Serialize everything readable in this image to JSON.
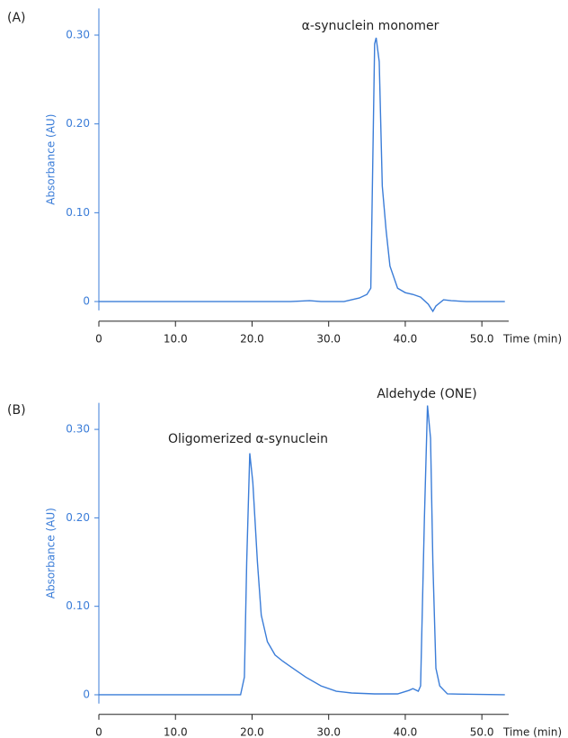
{
  "chart_data": [
    {
      "type": "line",
      "panel_label": "(A)",
      "y_label": "Absorbance (AU)",
      "x_label": "Time (min)",
      "annotations": [
        "α-synuclein monomer"
      ],
      "xlim": [
        0,
        53.5
      ],
      "ylim": [
        -0.01,
        0.33
      ],
      "xticks": [
        0,
        {
          "value": 10,
          "label": "10.0"
        },
        {
          "value": 20,
          "label": "20.0"
        },
        {
          "value": 30,
          "label": "30.0"
        },
        {
          "value": 40,
          "label": "40.0"
        },
        {
          "value": 50,
          "label": "50.0"
        }
      ],
      "yticks": [
        0,
        {
          "value": 0.1,
          "label": "0.10"
        },
        {
          "value": 0.2,
          "label": "0.20"
        },
        {
          "value": 0.3,
          "label": "0.30"
        }
      ],
      "color": "#3b7dd8",
      "x": [
        0,
        25,
        27.5,
        29,
        32,
        34,
        35,
        35.5,
        36,
        36.2,
        36.6,
        37,
        37.5,
        38,
        39,
        40,
        41,
        42,
        43,
        43.6,
        44,
        45,
        46,
        48,
        53
      ],
      "values": [
        0,
        0,
        0.001,
        0,
        0,
        0.004,
        0.008,
        0.015,
        0.29,
        0.297,
        0.27,
        0.13,
        0.08,
        0.04,
        0.015,
        0.01,
        0.008,
        0.005,
        -0.003,
        -0.011,
        -0.005,
        0.002,
        0.001,
        0,
        0
      ]
    },
    {
      "type": "line",
      "panel_label": "(B)",
      "y_label": "Absorbance (AU)",
      "x_label": "Time (min)",
      "annotations": [
        "Oligomerized α-synuclein",
        "Aldehyde (ONE)"
      ],
      "xlim": [
        0,
        53.5
      ],
      "ylim": [
        -0.01,
        0.33
      ],
      "xticks": [
        0,
        {
          "value": 10,
          "label": "10.0"
        },
        {
          "value": 20,
          "label": "20.0"
        },
        {
          "value": 30,
          "label": "30.0"
        },
        {
          "value": 40,
          "label": "40.0"
        },
        {
          "value": 50,
          "label": "50.0"
        }
      ],
      "yticks": [
        0,
        {
          "value": 0.1,
          "label": "0.10"
        },
        {
          "value": 0.2,
          "label": "0.20"
        },
        {
          "value": 0.3,
          "label": "0.30"
        }
      ],
      "color": "#3b7dd8",
      "x": [
        0,
        18.5,
        19,
        19.3,
        19.7,
        20.1,
        20.7,
        21.2,
        22,
        23,
        24,
        25,
        27,
        29,
        31,
        33,
        36,
        39,
        40.5,
        41,
        41.7,
        42,
        42.5,
        42.9,
        43.3,
        43.6,
        44,
        44.5,
        45.5,
        53
      ],
      "values": [
        0,
        0,
        0.02,
        0.15,
        0.273,
        0.24,
        0.15,
        0.09,
        0.06,
        0.045,
        0.038,
        0.032,
        0.02,
        0.01,
        0.004,
        0.002,
        0.001,
        0.001,
        0.005,
        0.007,
        0.004,
        0.01,
        0.2,
        0.327,
        0.29,
        0.15,
        0.03,
        0.01,
        0.001,
        0
      ]
    }
  ]
}
